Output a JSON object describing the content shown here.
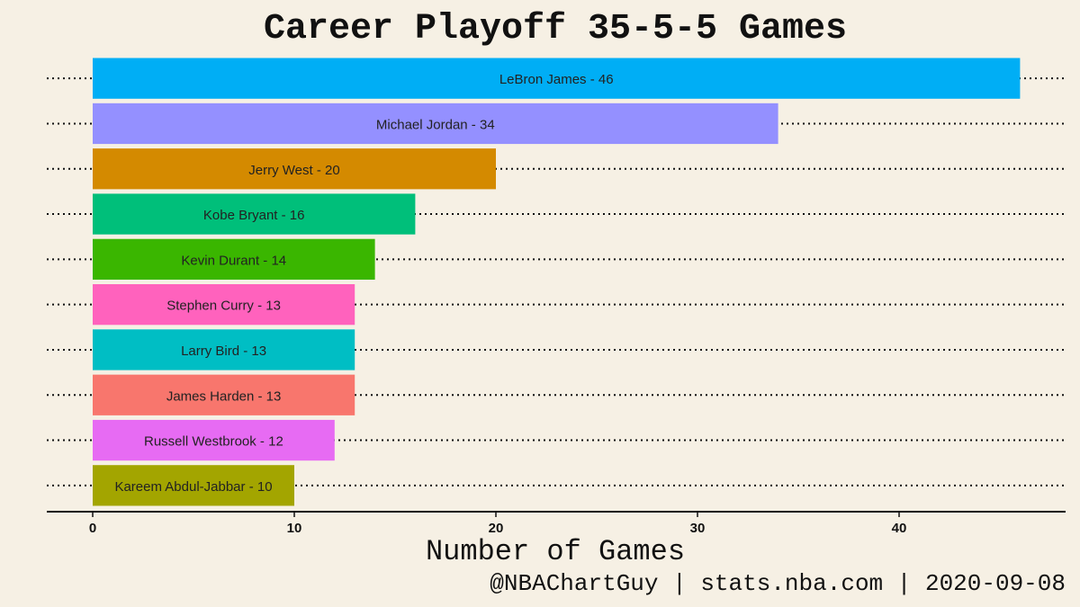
{
  "chart_data": {
    "type": "bar",
    "orientation": "horizontal",
    "title": "Career Playoff 35-5-5 Games",
    "xlabel": "Number of Games",
    "ylabel": "",
    "caption": "@NBAChartGuy | stats.nba.com | 2020-09-08",
    "xlim": [
      0,
      48.5
    ],
    "xticks": [
      0,
      10,
      20,
      30,
      40
    ],
    "grid": "dotted horizontal",
    "legend": "none",
    "bars": [
      {
        "player": "LeBron James",
        "value": 46,
        "label": "LeBron James - 46",
        "color": "#00aef5"
      },
      {
        "player": "Michael Jordan",
        "value": 34,
        "label": "Michael Jordan - 34",
        "color": "#9490ff"
      },
      {
        "player": "Jerry West",
        "value": 20,
        "label": "Jerry West - 20",
        "color": "#d48a00"
      },
      {
        "player": "Kobe Bryant",
        "value": 16,
        "label": "Kobe Bryant - 16",
        "color": "#00bf7a"
      },
      {
        "player": "Kevin Durant",
        "value": 14,
        "label": "Kevin Durant - 14",
        "color": "#3ab600"
      },
      {
        "player": "Stephen Curry",
        "value": 13,
        "label": "Stephen Curry - 13",
        "color": "#ff62bd"
      },
      {
        "player": "Larry Bird",
        "value": 13,
        "label": "Larry Bird - 13",
        "color": "#00bec4"
      },
      {
        "player": "James Harden",
        "value": 13,
        "label": "James Harden - 13",
        "color": "#f8766d"
      },
      {
        "player": "Russell Westbrook",
        "value": 12,
        "label": "Russell Westbrook - 12",
        "color": "#e76bf3"
      },
      {
        "player": "Kareem Abdul-Jabbar",
        "value": 10,
        "label": "Kareem Abdul-Jabbar - 10",
        "color": "#a3a500"
      }
    ]
  }
}
